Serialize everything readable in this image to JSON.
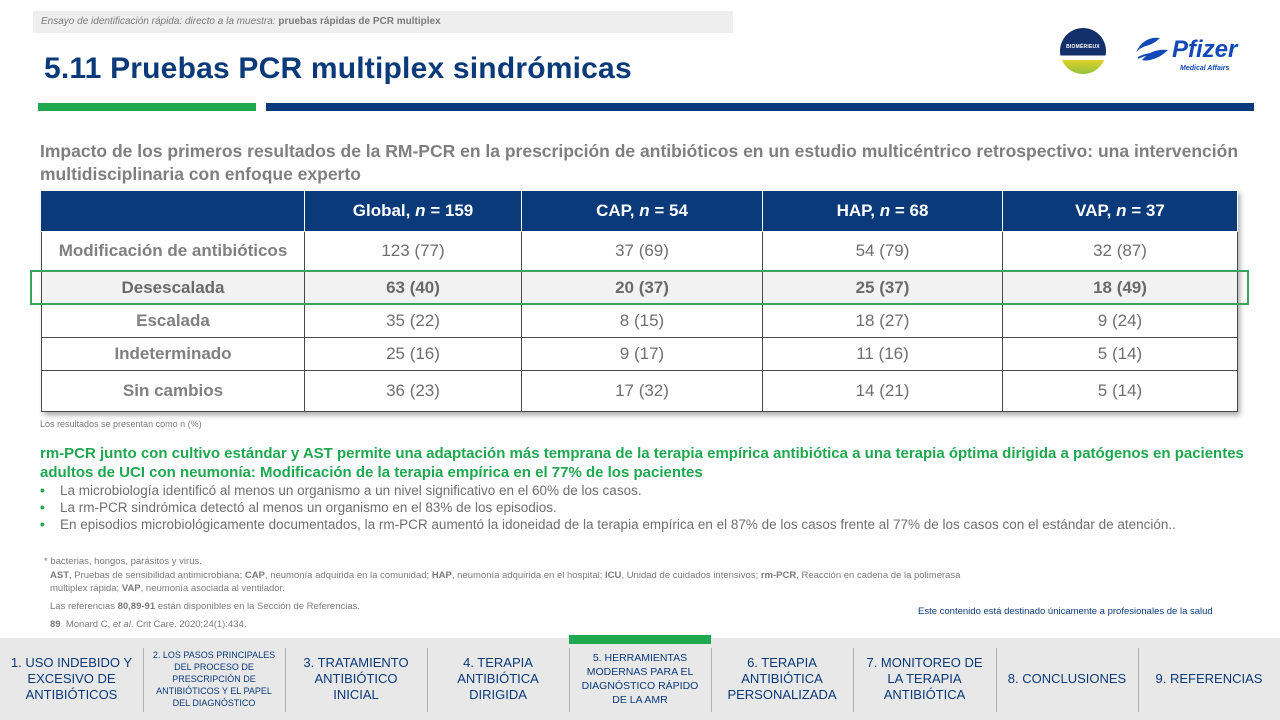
{
  "breadcrumb": {
    "prefix": "Ensayo de identificación rápida: directo a la muestra: ",
    "bold": "pruebas rápidas de PCR multiplex"
  },
  "title": "5.11 Pruebas PCR multiplex sindrómicas",
  "logos": {
    "biomerieux": "BIOMÉRIEUX",
    "pfizer_word": "Pfizer",
    "pfizer_sub": "Medical Affairs"
  },
  "subtitle": "Impacto de los primeros resultados de la RM-PCR en la prescripción de antibióticos en un estudio multicéntrico retrospectivo: una intervención multidisciplinaria con enfoque experto",
  "table": {
    "headers": [
      {
        "label": "Global, ",
        "n": "n",
        "rest": " = 159"
      },
      {
        "label": "CAP, ",
        "n": "n",
        "rest": " = 54"
      },
      {
        "label": "HAP, ",
        "n": "n",
        "rest": " = 68"
      },
      {
        "label": "VAP, ",
        "n": "n",
        "rest": " = 37"
      }
    ],
    "rows": [
      {
        "label": "Modificación de antibióticos",
        "cells": [
          "123 (77)",
          "37 (69)",
          "54 (79)",
          "32 (87)"
        ]
      },
      {
        "label": "Desescalada",
        "cells": [
          "63 (40)",
          "20 (37)",
          "25 (37)",
          "18 (49)"
        ]
      },
      {
        "label": "Escalada",
        "cells": [
          "35 (22)",
          "8 (15)",
          "18 (27)",
          "9 (24)"
        ]
      },
      {
        "label": "Indeterminado",
        "cells": [
          "25 (16)",
          "9 (17)",
          "11 (16)",
          "5 (14)"
        ]
      },
      {
        "label": "Sin cambios",
        "cells": [
          "36 (23)",
          "17 (32)",
          "14 (21)",
          "5 (14)"
        ]
      }
    ]
  },
  "results_note": "Los resultados se presentan como n (%)",
  "green_heading": "rm-PCR junto con cultivo estándar y AST permite una adaptación más temprana de la terapia empírica antibiótica a una terapia óptima dirigida a patógenos en pacientes adultos de UCI con neumonía: Modificación de la terapia empírica en el 77% de los pacientes",
  "bullets": [
    "La microbiología identificó al menos un organismo a un nivel significativo en el 60% de los casos.",
    "La rm-PCR sindrómica detectó al menos un organismo en el 83% de los episodios.",
    "En episodios microbiológicamente documentados, la rm-PCR aumentó la idoneidad de la terapia empírica en el 87% de los casos frente al 77% de los casos con el estándar de atención.."
  ],
  "footnotes": {
    "asterisk": "* bacterias, hongos, parásitos y virus.",
    "abbrev": [
      {
        "b": "AST",
        "t": ", Pruebas de sensibilidad antimicrobiana; "
      },
      {
        "b": "CAP",
        "t": ", neumonía adquirida en la comunidad; "
      },
      {
        "b": "HAP",
        "t": ", neumonía adquirida en el hospital; "
      },
      {
        "b": "ICU",
        "t": ", Unidad de cuidados intensivos; "
      },
      {
        "b": "rm-PCR",
        "t": ", Reacción en cadena de la polimerasa multiplex rápida; "
      },
      {
        "b": "VAP",
        "t": ", neumonía asociada al ventilador."
      }
    ],
    "refs_pre": "Las referencias ",
    "refs_bold": "80,89-91",
    "refs_post": " están disponibles en la Sección de Referencias.",
    "ref89_num": "89",
    "ref89_text": ". Monard C, ",
    "ref89_etal": "et al",
    "ref89_rest": ". Crit Care. 2020;24(1):434."
  },
  "hcp_note": "Este contenido está destinado únicamente a profesionales de la salud",
  "nav": [
    {
      "label": "1. USO INDEBIDO Y EXCESIVO DE ANTIBIÓTICOS",
      "style": "normal"
    },
    {
      "label": "2. LOS PASOS PRINCIPALES DEL PROCESO DE PRESCRIPCIÓN DE ANTIBIÓTICOS Y EL PAPEL DEL DIAGNÓSTICO",
      "style": "small"
    },
    {
      "label": "3. TRATAMIENTO ANTIBIÓTICO INICIAL",
      "style": "normal"
    },
    {
      "label": "4. TERAPIA ANTIBIÓTICA DIRIGIDA",
      "style": "normal"
    },
    {
      "label": "5. HERRAMIENTAS MODERNAS PARA EL DIAGNÓSTICO RÁPIDO DE LA AMR",
      "style": "active"
    },
    {
      "label": "6. TERAPIA ANTIBIÓTICA PERSONALIZADA",
      "style": "normal"
    },
    {
      "label": "7. MONITOREO DE LA TERAPIA ANTIBIÓTICA",
      "style": "normal"
    },
    {
      "label": "8. CONCLUSIONES",
      "style": "normal"
    },
    {
      "label": "9. REFERENCIAS",
      "style": "normal"
    }
  ],
  "colors": {
    "navy": "#0a3a7a",
    "green": "#1fa84f",
    "grey_text": "#7f7f7f"
  }
}
